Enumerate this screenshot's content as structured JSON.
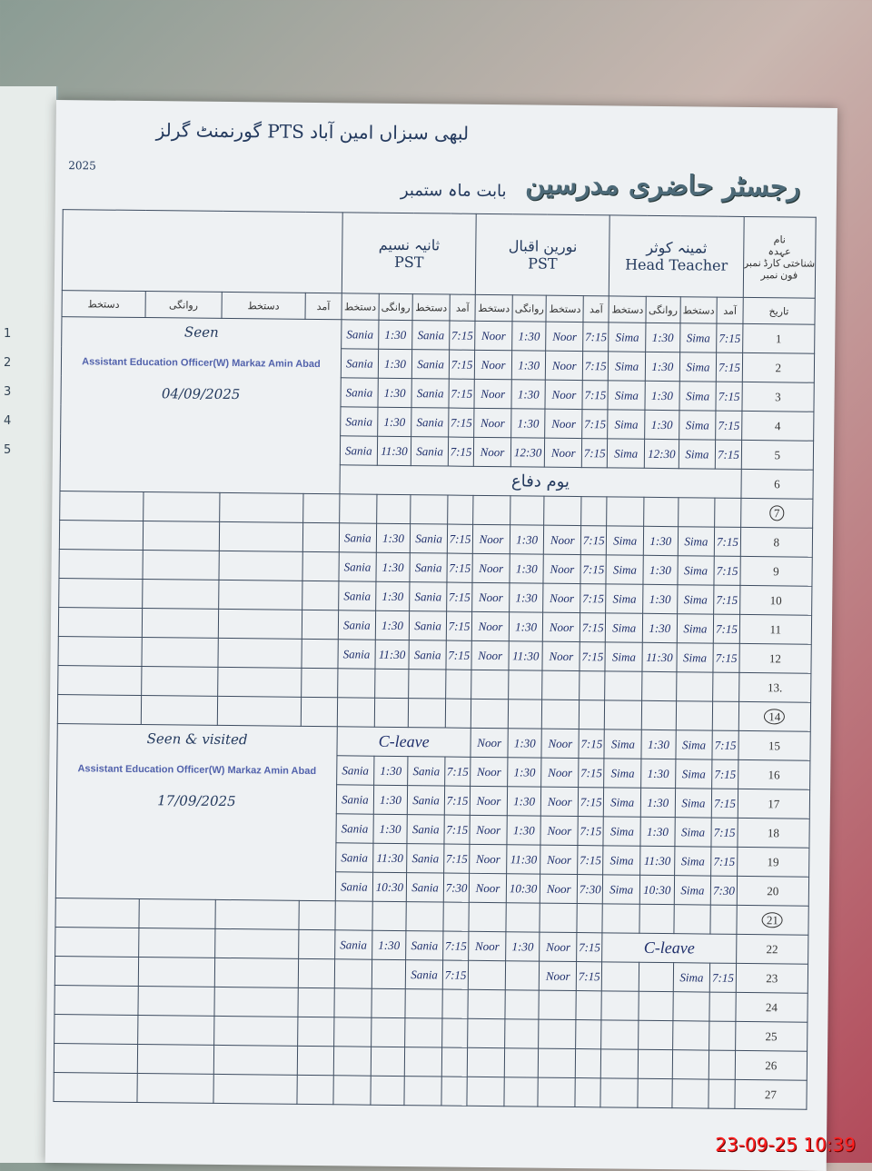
{
  "register": {
    "title": "رجسٹر حاضری مدرسین",
    "school": "گورنمنٹ گرلز PTS لبھی سبزاں امین آباد",
    "month_label": "بابت ماہ",
    "month": "ستمبر",
    "year": "2025",
    "row_labels": [
      "نام",
      "عہدہ",
      "شناختی کارڈ نمبر",
      "فون نمبر",
      "تاریخ"
    ],
    "column_labels": {
      "arrival": "آمد",
      "signature": "دستخط",
      "departure": "روانگی"
    },
    "remarks_columns": [
      "دستخط",
      "روانگی",
      "دستخط",
      "آمد"
    ]
  },
  "teachers": [
    {
      "name": "ثانیہ نسیم",
      "designation": "PST",
      "sign": "Sania"
    },
    {
      "name": "نورین اقبال",
      "designation": "PST",
      "sign": "Noor"
    },
    {
      "name": "ثمینہ کوثر",
      "designation": "Head Teacher",
      "sign": "Sima"
    }
  ],
  "visits": [
    {
      "remark": "Seen",
      "stamp": "Assistant Education Officer(W) Markaz Amin Abad",
      "date": "04/09/2025"
    },
    {
      "remark": "Seen & visited",
      "stamp": "Assistant Education Officer(W) Markaz Amin Abad",
      "date": "17/09/2025"
    }
  ],
  "rows": [
    {
      "date": "1",
      "t": [
        [
          "7:15",
          "1:30"
        ],
        [
          "7:15",
          "1:30"
        ],
        [
          "7:15",
          "1:30"
        ]
      ]
    },
    {
      "date": "2",
      "t": [
        [
          "7:15",
          "1:30"
        ],
        [
          "7:15",
          "1:30"
        ],
        [
          "7:15",
          "1:30"
        ]
      ]
    },
    {
      "date": "3",
      "t": [
        [
          "7:15",
          "1:30"
        ],
        [
          "7:15",
          "1:30"
        ],
        [
          "7:15",
          "1:30"
        ]
      ]
    },
    {
      "date": "4",
      "t": [
        [
          "7:15",
          "1:30"
        ],
        [
          "7:15",
          "1:30"
        ],
        [
          "7:15",
          "1:30"
        ]
      ]
    },
    {
      "date": "5",
      "t": [
        [
          "7:15",
          "11:30"
        ],
        [
          "7:15",
          "12:30"
        ],
        [
          "7:15",
          "12:30"
        ]
      ]
    },
    {
      "date": "6",
      "note": "یوم دفاع"
    },
    {
      "date": "7",
      "sunday": true
    },
    {
      "date": "8",
      "t": [
        [
          "7:15",
          "1:30"
        ],
        [
          "7:15",
          "1:30"
        ],
        [
          "7:15",
          "1:30"
        ]
      ]
    },
    {
      "date": "9",
      "t": [
        [
          "7:15",
          "1:30"
        ],
        [
          "7:15",
          "1:30"
        ],
        [
          "7:15",
          "1:30"
        ]
      ]
    },
    {
      "date": "10",
      "t": [
        [
          "7:15",
          "1:30"
        ],
        [
          "7:15",
          "1:30"
        ],
        [
          "7:15",
          "1:30"
        ]
      ]
    },
    {
      "date": "11",
      "t": [
        [
          "7:15",
          "1:30"
        ],
        [
          "7:15",
          "1:30"
        ],
        [
          "7:15",
          "1:30"
        ]
      ]
    },
    {
      "date": "12",
      "t": [
        [
          "7:15",
          "11:30"
        ],
        [
          "7:15",
          "11:30"
        ],
        [
          "7:15",
          "11:30"
        ]
      ]
    },
    {
      "date": "13."
    },
    {
      "date": "14",
      "sunday": true
    },
    {
      "date": "15",
      "t": [
        "C-leave",
        [
          "7:15",
          "1:30"
        ],
        [
          "7:15",
          "1:30"
        ]
      ]
    },
    {
      "date": "16",
      "t": [
        [
          "7:15",
          "1:30"
        ],
        [
          "7:15",
          "1:30"
        ],
        [
          "7:15",
          "1:30"
        ]
      ]
    },
    {
      "date": "17",
      "t": [
        [
          "7:15",
          "1:30"
        ],
        [
          "7:15",
          "1:30"
        ],
        [
          "7:15",
          "1:30"
        ]
      ]
    },
    {
      "date": "18",
      "t": [
        [
          "7:15",
          "1:30"
        ],
        [
          "7:15",
          "1:30"
        ],
        [
          "7:15",
          "1:30"
        ]
      ]
    },
    {
      "date": "19",
      "t": [
        [
          "7:15",
          "11:30"
        ],
        [
          "7:15",
          "11:30"
        ],
        [
          "7:15",
          "11:30"
        ]
      ]
    },
    {
      "date": "20",
      "t": [
        [
          "7:30",
          "10:30"
        ],
        [
          "7:30",
          "10:30"
        ],
        [
          "7:30",
          "10:30"
        ]
      ]
    },
    {
      "date": "21",
      "sunday": true
    },
    {
      "date": "22",
      "t": [
        [
          "7:15",
          "1:30"
        ],
        [
          "7:15",
          "1:30"
        ],
        "C-leave"
      ]
    },
    {
      "date": "23",
      "t": [
        [
          "7:15",
          ""
        ],
        [
          "7:15",
          ""
        ],
        [
          "7:15",
          ""
        ]
      ]
    },
    {
      "date": "24"
    },
    {
      "date": "25"
    },
    {
      "date": "26"
    },
    {
      "date": "27"
    }
  ],
  "camera_timestamp": "23-09-25 10:39",
  "left_page_numbers": [
    "1",
    "2",
    "3",
    "4",
    "5"
  ]
}
